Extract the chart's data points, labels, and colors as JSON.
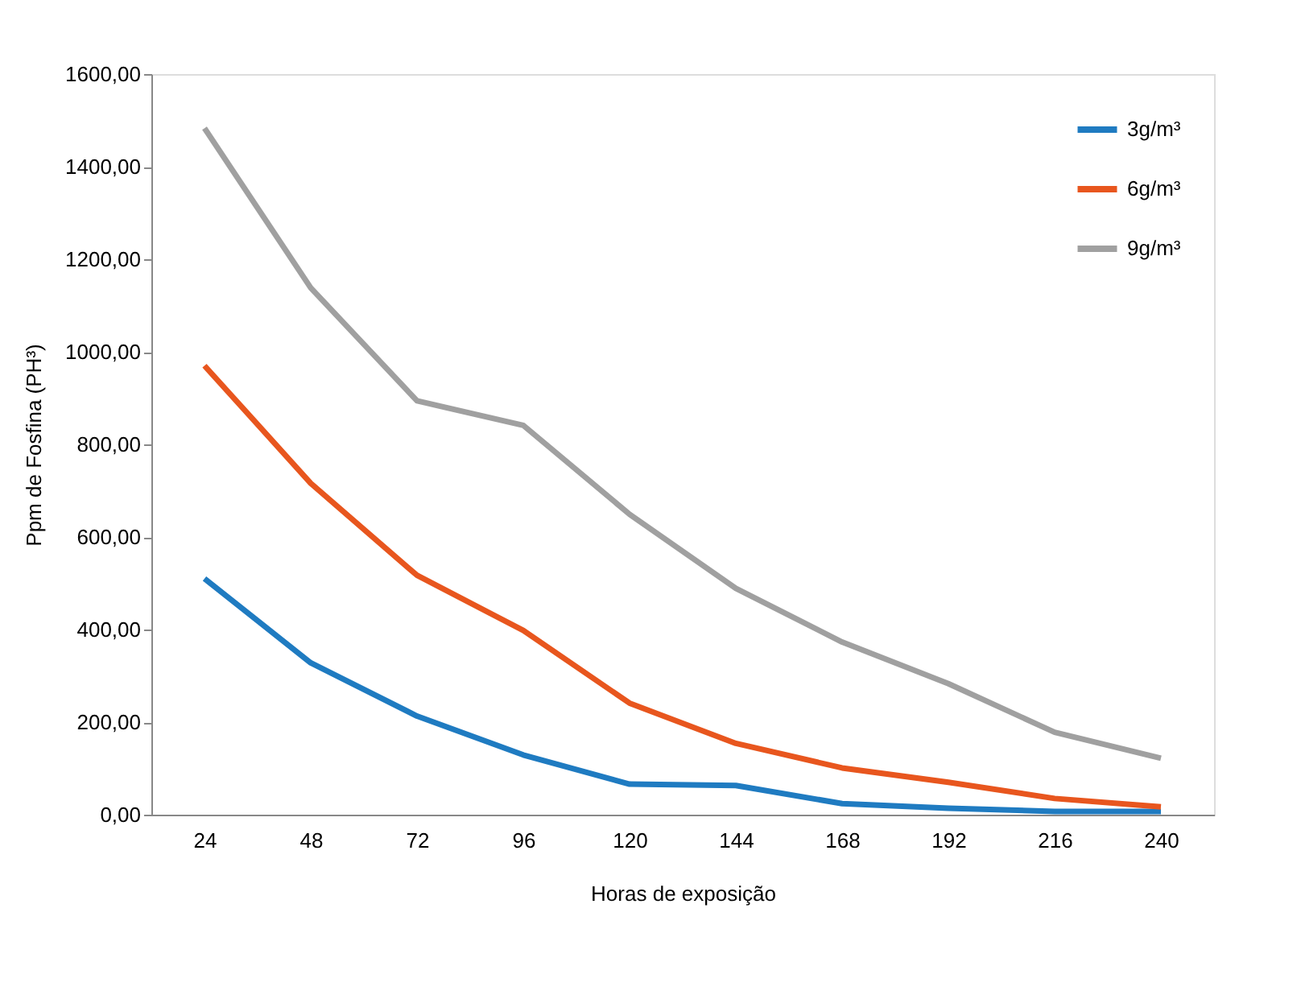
{
  "chart_data": {
    "type": "line",
    "xlabel": "Horas de exposição",
    "ylabel": "Ppm de Fosfina (PH³)",
    "categories": [
      "24",
      "48",
      "72",
      "96",
      "120",
      "144",
      "168",
      "192",
      "216",
      "240"
    ],
    "series": [
      {
        "name": "3g/m³",
        "color": "#1f7bc1",
        "values": [
          510,
          328,
          213,
          129,
          66,
          63,
          24,
          14,
          7,
          7
        ]
      },
      {
        "name": "6g/m³",
        "color": "#e8561e",
        "values": [
          970,
          716,
          517,
          398,
          241,
          154,
          101,
          70,
          35,
          17
        ]
      },
      {
        "name": "9g/m³",
        "color": "#a0a0a0",
        "values": [
          1483,
          1138,
          894,
          841,
          649,
          489,
          373,
          283,
          178,
          122
        ]
      }
    ],
    "ylim": [
      0,
      1600
    ],
    "yticks": [
      {
        "value": 0,
        "label": "0,00"
      },
      {
        "value": 200,
        "label": "200,00"
      },
      {
        "value": 400,
        "label": "400,00"
      },
      {
        "value": 600,
        "label": "600,00"
      },
      {
        "value": 800,
        "label": "800,00"
      },
      {
        "value": 1000,
        "label": "1000,00"
      },
      {
        "value": 1200,
        "label": "1200,00"
      },
      {
        "value": 1400,
        "label": "1400,00"
      },
      {
        "value": 1600,
        "label": "1600,00"
      }
    ],
    "grid": false,
    "legend": "top right",
    "marker": "none",
    "line_style": "solid"
  }
}
